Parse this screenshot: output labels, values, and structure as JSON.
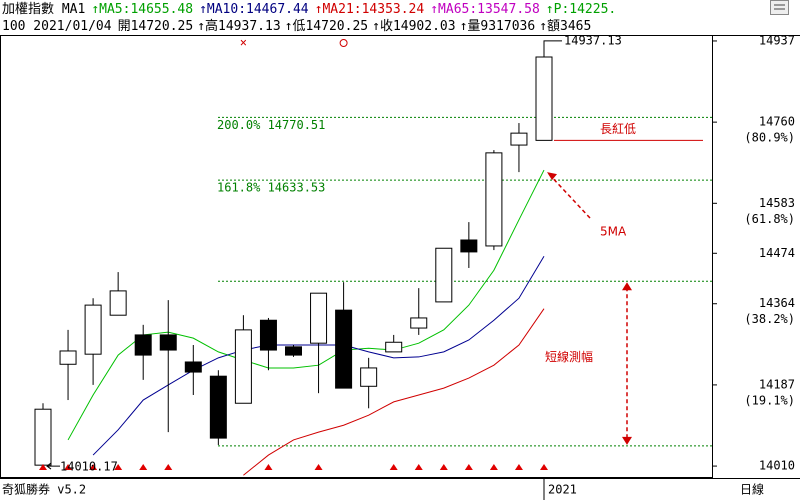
{
  "chart_data": {
    "type": "candlestick",
    "header": {
      "name": "加權指數 MA1",
      "ma_items": [
        {
          "text": "MA5:14655.48",
          "color": "#00a000"
        },
        {
          "text": "MA10:14467.44",
          "color": "#000080"
        },
        {
          "text": "MA21:14353.24",
          "color": "#d00000"
        },
        {
          "text": "MA65:13547.58",
          "color": "#c000c0"
        },
        {
          "text": "P:14225.",
          "color": "#00a000"
        }
      ],
      "quote": [
        "100 2021/01/04",
        "開14720.25",
        "高14937.13",
        "低14720.25",
        "收14902.03",
        "量9317036",
        "額3465"
      ]
    },
    "categories": [
      null,
      null,
      null,
      null,
      null,
      null,
      null,
      null,
      null,
      null,
      null,
      null,
      null,
      null,
      null,
      null,
      null,
      null,
      null,
      null,
      "2021"
    ],
    "ohlc": {
      "open": [
        14012,
        14232,
        14254,
        14339,
        14296,
        14296,
        14237,
        14206,
        14147,
        14328,
        14270,
        14278,
        14350,
        14184,
        14259,
        14311,
        14368,
        14503,
        14490,
        14710,
        14720.25
      ],
      "high": [
        14147,
        14307,
        14376,
        14433,
        14318,
        14372,
        14274,
        14219,
        14339,
        14333,
        14274,
        14387,
        14411,
        14246,
        14296,
        14398,
        14485,
        14542,
        14699,
        14758,
        14937.13
      ],
      "low": [
        14010,
        14154,
        14187,
        14339,
        14198,
        14084,
        14165,
        14056,
        14147,
        14219,
        14248,
        14169,
        14180,
        14136,
        14259,
        14296,
        14368,
        14442,
        14481,
        14651,
        14720.25
      ],
      "close": [
        14134,
        14261,
        14361,
        14392,
        14252,
        14263,
        14215,
        14071,
        14307,
        14263,
        14252,
        14387,
        14180,
        14224,
        14280,
        14333,
        14485,
        14477,
        14693,
        14736,
        14902.03
      ]
    },
    "series": [
      {
        "name": "MA5",
        "color": "#00c000",
        "values": [
          null,
          14067,
          14165,
          14252,
          14296,
          14302,
          14289,
          14259,
          14241,
          14224,
          14224,
          14230,
          14263,
          14267,
          14263,
          14278,
          14307,
          14361,
          14437,
          14547,
          14655.48
        ]
      },
      {
        "name": "MA10",
        "color": "#000090",
        "values": [
          null,
          null,
          14034,
          14089,
          14154,
          14187,
          14219,
          14246,
          14263,
          14274,
          14274,
          14274,
          14274,
          14259,
          14246,
          14248,
          14259,
          14285,
          14328,
          14376,
          14467.44
        ]
      },
      {
        "name": "MA21",
        "color": "#d00000",
        "values": [
          null,
          null,
          null,
          null,
          null,
          null,
          null,
          null,
          13990,
          14034,
          14067,
          14084,
          14099,
          14121,
          14150,
          14165,
          14180,
          14202,
          14230,
          14274,
          14353.24
        ]
      }
    ],
    "up_color": "#ffffff",
    "down_color": "#000000",
    "ylim": [
      13984,
      14950
    ],
    "yticks": [
      14937,
      14760,
      14583,
      14474,
      14364,
      14187,
      14010
    ],
    "ytick_pcts": [
      {
        "value": 14760,
        "label": "(80.9%)"
      },
      {
        "value": 14583,
        "label": "(61.8%)"
      },
      {
        "value": 14364,
        "label": "(38.2%)"
      },
      {
        "value": 14187,
        "label": "(19.1%)"
      }
    ],
    "levels": [
      {
        "value": 14770.51,
        "label": "200.0% 14770.51"
      },
      {
        "value": 14633.53,
        "label": "161.8% 14633.53"
      }
    ],
    "range_levels": [
      14413,
      14054
    ],
    "buy_signals": [
      0,
      1,
      2,
      3,
      4,
      5,
      9,
      11,
      14,
      15,
      16,
      17,
      18,
      19,
      20
    ],
    "high_note": "14937.13",
    "low_note": "14010.17",
    "annotations": {
      "long_red_low": "長紅低",
      "ma5": "5MA",
      "range": "短線測幅"
    },
    "footer": {
      "left": "奇狐勝券 v5.2",
      "right": "日線"
    }
  }
}
